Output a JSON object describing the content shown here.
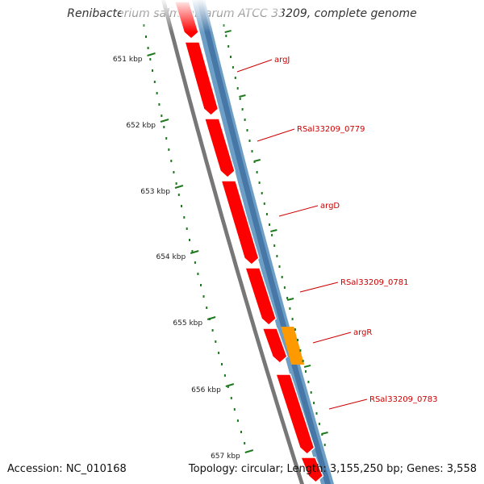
{
  "title": "Renibacterium salmoninarum ATCC 33209, complete genome",
  "footer": {
    "accession": "Accession: NC_010168",
    "summary": "Topology: circular; Length: 3,155,250 bp; Genes: 3,558"
  },
  "colors": {
    "gene": "#ff0000",
    "gene_highlight": "#ff9900",
    "backbone_outer": "#6d9ec6",
    "backbone_inner": "#4677a6",
    "ruler": "#1f7a1f",
    "label": "#cc0000",
    "tick_text": "#222222"
  },
  "ticks": [
    {
      "label": "651 kbp"
    },
    {
      "label": "652 kbp"
    },
    {
      "label": "653 kbp"
    },
    {
      "label": "654 kbp"
    },
    {
      "label": "655 kbp"
    },
    {
      "label": "656 kbp"
    },
    {
      "label": "657 kbp"
    }
  ],
  "genes": [
    {
      "name": "argJ",
      "highlight": false
    },
    {
      "name": "RSal33209_0779",
      "highlight": false
    },
    {
      "name": "argD",
      "highlight": false
    },
    {
      "name": "RSal33209_0781",
      "highlight": false
    },
    {
      "name": "argR",
      "highlight": true
    },
    {
      "name": "RSal33209_0783",
      "highlight": false
    }
  ]
}
